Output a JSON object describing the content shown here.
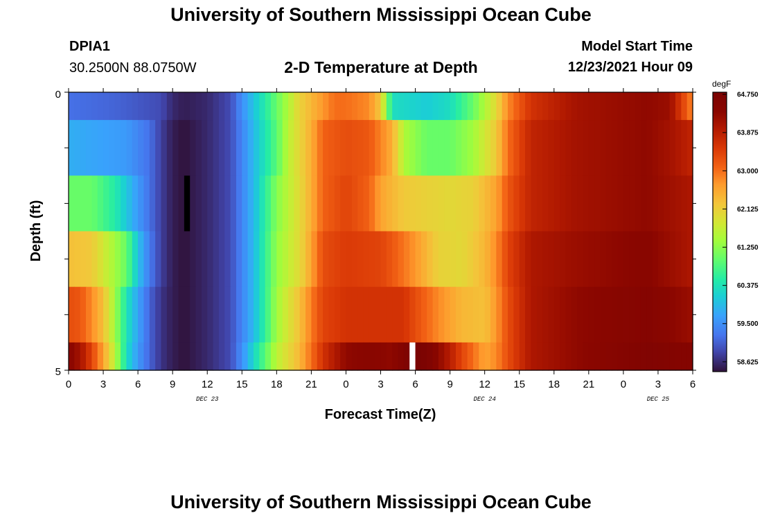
{
  "page": {
    "title": "University of Southern Mississippi Ocean Cube",
    "bottom_title": "University of Southern Mississippi Ocean Cube",
    "station_id": "DPIA1",
    "station_coords": "30.2500N  88.0750W",
    "model_start_label": "Model Start Time",
    "model_start_value": "12/23/2021 Hour 09"
  },
  "chart_data": {
    "type": "heatmap",
    "title": "2-D Temperature at Depth",
    "xlabel": "Forecast Time(Z)",
    "ylabel": "Depth (ft)",
    "x_tick_labels": [
      "0",
      "3",
      "6",
      "9",
      "12",
      "15",
      "18",
      "21",
      "0",
      "3",
      "6",
      "9",
      "12",
      "15",
      "18",
      "21",
      "0",
      "3",
      "6"
    ],
    "date_labels": [
      {
        "text": "DEC 23",
        "tick_index": 4
      },
      {
        "text": "DEC 24",
        "tick_index": 12
      },
      {
        "text": "DEC 25",
        "tick_index": 17
      }
    ],
    "y_tick_labels": [
      "0",
      "5"
    ],
    "ylim": [
      0,
      5
    ],
    "xlim_hours": [
      0,
      54
    ],
    "colorbar": {
      "unit": "degF",
      "tick_labels": [
        "64.750",
        "63.875",
        "63.000",
        "62.125",
        "61.250",
        "60.375",
        "59.500",
        "58.625"
      ],
      "range": [
        58.4,
        64.8
      ]
    },
    "rows": [
      {
        "depth": "0-0.5",
        "knots": [
          [
            0,
            59.2
          ],
          [
            4,
            59.1
          ],
          [
            6,
            59.0
          ],
          [
            8,
            58.9
          ],
          [
            9,
            58.6
          ],
          [
            10,
            58.5
          ],
          [
            12,
            58.6
          ],
          [
            14,
            58.9
          ],
          [
            15,
            59.5
          ],
          [
            16,
            60.0
          ],
          [
            17,
            60.5
          ],
          [
            18,
            61.0
          ],
          [
            19,
            61.5
          ],
          [
            20,
            62.1
          ],
          [
            21,
            62.4
          ],
          [
            23,
            63.0
          ],
          [
            24,
            63.0
          ],
          [
            26,
            62.8
          ],
          [
            27,
            62.2
          ],
          [
            28,
            60.3
          ],
          [
            31,
            60.1
          ],
          [
            33,
            60.3
          ],
          [
            35,
            61.0
          ],
          [
            37,
            62.0
          ],
          [
            38,
            62.8
          ],
          [
            40,
            63.6
          ],
          [
            44,
            64.1
          ],
          [
            50,
            64.3
          ],
          [
            52,
            64.2
          ],
          [
            53,
            63.5
          ],
          [
            54,
            62.8
          ]
        ]
      },
      {
        "depth": "0.5-1.5",
        "knots": [
          [
            0,
            59.8
          ],
          [
            5,
            59.6
          ],
          [
            7,
            59.2
          ],
          [
            8,
            58.8
          ],
          [
            9,
            58.5
          ],
          [
            10,
            58.4
          ],
          [
            12,
            58.6
          ],
          [
            14,
            58.9
          ],
          [
            15,
            59.4
          ],
          [
            16,
            59.9
          ],
          [
            18,
            60.9
          ],
          [
            19,
            61.6
          ],
          [
            21,
            62.5
          ],
          [
            22,
            63.1
          ],
          [
            24,
            63.3
          ],
          [
            26,
            63.2
          ],
          [
            28,
            62.5
          ],
          [
            29,
            61.5
          ],
          [
            31,
            61.0
          ],
          [
            33,
            61.0
          ],
          [
            35,
            61.4
          ],
          [
            37,
            62.2
          ],
          [
            38,
            63.0
          ],
          [
            40,
            63.8
          ],
          [
            44,
            64.1
          ],
          [
            50,
            64.3
          ],
          [
            52,
            64.1
          ],
          [
            54,
            63.8
          ]
        ]
      },
      {
        "depth": "1.5-2.5",
        "knots": [
          [
            0,
            61.0
          ],
          [
            2,
            61.0
          ],
          [
            4,
            60.5
          ],
          [
            6,
            59.6
          ],
          [
            7,
            59.2
          ],
          [
            8,
            58.8
          ],
          [
            9,
            58.5
          ],
          [
            10,
            58.4
          ],
          [
            12,
            58.6
          ],
          [
            14,
            58.9
          ],
          [
            15,
            59.4
          ],
          [
            16,
            59.9
          ],
          [
            18,
            61.2
          ],
          [
            20,
            62.0
          ],
          [
            21,
            62.5
          ],
          [
            22,
            63.1
          ],
          [
            24,
            63.4
          ],
          [
            26,
            63.1
          ],
          [
            27,
            62.6
          ],
          [
            29,
            62.2
          ],
          [
            31,
            62.1
          ],
          [
            33,
            62.0
          ],
          [
            35,
            62.1
          ],
          [
            37,
            62.6
          ],
          [
            38,
            63.2
          ],
          [
            40,
            63.8
          ],
          [
            44,
            64.1
          ],
          [
            50,
            64.3
          ],
          [
            54,
            64.0
          ]
        ]
      },
      {
        "depth": "2.5-3.5",
        "knots": [
          [
            0,
            62.3
          ],
          [
            2,
            62.2
          ],
          [
            3,
            61.8
          ],
          [
            5,
            61.0
          ],
          [
            6,
            60.0
          ],
          [
            7,
            59.3
          ],
          [
            8,
            58.8
          ],
          [
            9,
            58.5
          ],
          [
            10,
            58.4
          ],
          [
            12,
            58.6
          ],
          [
            14,
            58.9
          ],
          [
            15,
            59.4
          ],
          [
            16,
            59.9
          ],
          [
            18,
            61.3
          ],
          [
            20,
            62.0
          ],
          [
            21,
            62.6
          ],
          [
            22,
            63.3
          ],
          [
            24,
            63.5
          ],
          [
            27,
            63.4
          ],
          [
            28,
            63.2
          ],
          [
            30,
            62.7
          ],
          [
            32,
            62.1
          ],
          [
            34,
            62.0
          ],
          [
            36,
            62.4
          ],
          [
            37,
            62.8
          ],
          [
            38,
            63.4
          ],
          [
            40,
            64.0
          ],
          [
            44,
            64.2
          ],
          [
            50,
            64.4
          ],
          [
            54,
            64.0
          ]
        ]
      },
      {
        "depth": "3.5-4.5",
        "knots": [
          [
            0,
            63.3
          ],
          [
            1,
            63.2
          ],
          [
            2,
            62.8
          ],
          [
            3,
            62.3
          ],
          [
            4,
            61.4
          ],
          [
            5,
            60.4
          ],
          [
            6,
            59.7
          ],
          [
            7,
            59.1
          ],
          [
            8,
            58.7
          ],
          [
            9,
            58.5
          ],
          [
            10,
            58.4
          ],
          [
            12,
            58.6
          ],
          [
            14,
            58.9
          ],
          [
            15,
            59.4
          ],
          [
            16,
            59.9
          ],
          [
            17,
            60.6
          ],
          [
            18,
            61.4
          ],
          [
            20,
            62.3
          ],
          [
            21,
            62.9
          ],
          [
            22,
            63.4
          ],
          [
            24,
            63.6
          ],
          [
            29,
            63.6
          ],
          [
            30,
            63.3
          ],
          [
            32,
            62.8
          ],
          [
            34,
            62.4
          ],
          [
            36,
            62.3
          ],
          [
            37,
            62.7
          ],
          [
            38,
            63.3
          ],
          [
            40,
            64.0
          ],
          [
            44,
            64.3
          ],
          [
            50,
            64.5
          ],
          [
            54,
            64.2
          ]
        ]
      },
      {
        "depth": "4.5-5",
        "knots": [
          [
            0,
            64.4
          ],
          [
            1,
            64.1
          ],
          [
            2,
            63.4
          ],
          [
            3,
            62.6
          ],
          [
            4,
            61.6
          ],
          [
            5,
            60.3
          ],
          [
            6,
            59.6
          ],
          [
            7,
            59.1
          ],
          [
            8,
            58.7
          ],
          [
            9,
            58.5
          ],
          [
            10,
            58.4
          ],
          [
            12,
            58.6
          ],
          [
            14,
            58.9
          ],
          [
            15,
            59.5
          ],
          [
            16,
            60.2
          ],
          [
            17,
            60.9
          ],
          [
            18,
            61.6
          ],
          [
            20,
            62.4
          ],
          [
            21,
            63.0
          ],
          [
            22,
            63.6
          ],
          [
            24,
            64.3
          ],
          [
            26,
            64.4
          ],
          [
            28,
            64.3
          ],
          [
            29,
            64.6
          ],
          [
            30,
            64.8
          ],
          [
            31,
            64.7
          ],
          [
            32,
            64.3
          ],
          [
            33,
            63.9
          ],
          [
            34,
            63.4
          ],
          [
            35,
            63.0
          ],
          [
            36,
            62.6
          ],
          [
            37,
            62.8
          ],
          [
            38,
            63.3
          ],
          [
            40,
            64.0
          ],
          [
            44,
            64.3
          ],
          [
            50,
            64.6
          ],
          [
            54,
            64.5
          ]
        ]
      }
    ],
    "missing_cells": [
      {
        "x_hours": [
          10.0,
          10.5
        ],
        "depth": [
          1.5,
          2.5
        ],
        "color": "#000000"
      },
      {
        "x_hours": [
          29.5,
          30.0
        ],
        "depth": [
          4.5,
          5.0
        ],
        "color": "#ffffff"
      }
    ]
  }
}
